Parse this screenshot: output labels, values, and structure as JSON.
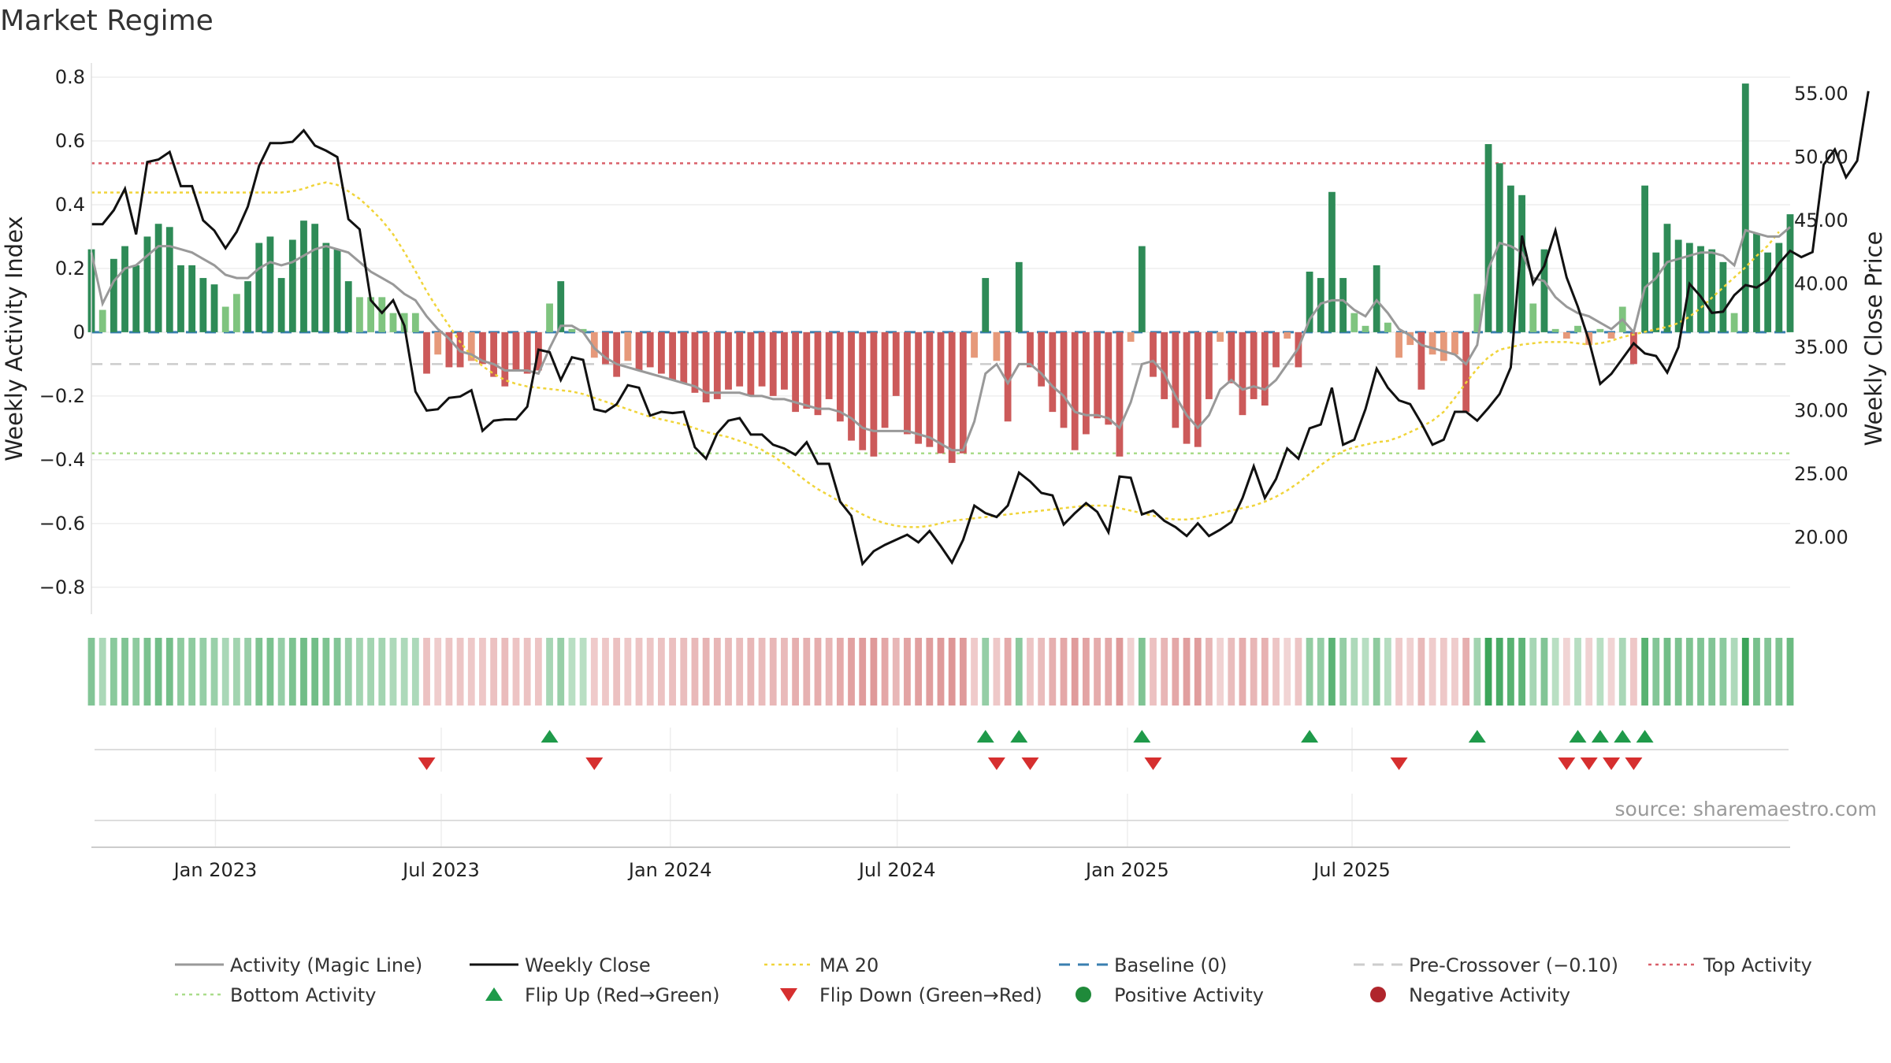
{
  "title": "Market Regime",
  "credit": "source: sharemaestro.com",
  "chart_data": {
    "type": "bar",
    "ylabel_left": "Weekly Activity Index",
    "ylabel_right": "Weekly Close Price",
    "y_left_ticks": [
      "0.8",
      "0.6",
      "0.4",
      "0.2",
      "0",
      "−0.2",
      "−0.4",
      "−0.6",
      "−0.8"
    ],
    "y_left_values": [
      0.8,
      0.6,
      0.4,
      0.2,
      0,
      -0.2,
      -0.4,
      -0.6,
      -0.8
    ],
    "y_right_ticks": [
      "55.00",
      "50.00",
      "45.00",
      "40.00",
      "35.00",
      "30.00",
      "25.00",
      "20.00"
    ],
    "y_right_values": [
      55,
      50,
      45,
      40,
      35,
      30,
      25,
      20
    ],
    "ylim_left": [
      -0.84,
      0.8
    ],
    "ylim_right": [
      15.05,
      56.3
    ],
    "x_ticks": [
      "Jan 2023",
      "Jul 2023",
      "Jan 2024",
      "Jul 2024",
      "Jan 2025",
      "Jul 2025"
    ],
    "x_tick_weeks": [
      11.1,
      31.3,
      51.8,
      72.1,
      92.7,
      112.8
    ],
    "grid": true,
    "reference_lines": {
      "baseline": 0,
      "pre_crossover": -0.1,
      "top_activity": 0.53,
      "bottom_activity": -0.38
    },
    "activity": [
      0.26,
      0.07,
      0.23,
      0.27,
      0.21,
      0.3,
      0.34,
      0.33,
      0.21,
      0.21,
      0.17,
      0.15,
      0.08,
      0.12,
      0.16,
      0.28,
      0.3,
      0.17,
      0.29,
      0.35,
      0.34,
      0.28,
      0.26,
      0.16,
      0.11,
      0.11,
      0.11,
      0.06,
      0.06,
      0.06,
      -0.13,
      -0.07,
      -0.11,
      -0.11,
      -0.09,
      -0.1,
      -0.14,
      -0.17,
      -0.12,
      -0.13,
      -0.12,
      0.09,
      0.16,
      0.01,
      0.01,
      -0.08,
      -0.1,
      -0.14,
      -0.09,
      -0.12,
      -0.11,
      -0.13,
      -0.15,
      -0.16,
      -0.19,
      -0.22,
      -0.21,
      -0.18,
      -0.17,
      -0.2,
      -0.17,
      -0.2,
      -0.18,
      -0.25,
      -0.24,
      -0.26,
      -0.21,
      -0.28,
      -0.34,
      -0.37,
      -0.39,
      -0.3,
      -0.2,
      -0.32,
      -0.35,
      -0.36,
      -0.38,
      -0.41,
      -0.38,
      -0.08,
      0.17,
      -0.09,
      -0.28,
      0.22,
      -0.11,
      -0.17,
      -0.25,
      -0.3,
      -0.37,
      -0.32,
      -0.27,
      -0.29,
      -0.39,
      -0.03,
      0.27,
      -0.14,
      -0.21,
      -0.3,
      -0.35,
      -0.36,
      -0.21,
      -0.03,
      -0.16,
      -0.26,
      -0.21,
      -0.23,
      -0.11,
      -0.02,
      -0.11,
      0.19,
      0.17,
      0.44,
      0.17,
      0.06,
      0.02,
      0.21,
      0.03,
      -0.08,
      -0.04,
      -0.18,
      -0.07,
      -0.09,
      -0.07,
      -0.25,
      0.12,
      0.59,
      0.53,
      0.46,
      0.43,
      0.09,
      0.26,
      0.01,
      -0.02,
      0.02,
      -0.04,
      0.01,
      -0.02,
      0.08,
      -0.1,
      0.46,
      0.25,
      0.34,
      0.29,
      0.28,
      0.27,
      0.26,
      0.22,
      0.06,
      0.78,
      0.31,
      0.25,
      0.28,
      0.37
    ],
    "activity_magic_line": [
      0.25,
      0.09,
      0.16,
      0.2,
      0.21,
      0.24,
      0.27,
      0.27,
      0.26,
      0.25,
      0.23,
      0.21,
      0.18,
      0.17,
      0.17,
      0.2,
      0.22,
      0.21,
      0.22,
      0.24,
      0.26,
      0.27,
      0.26,
      0.25,
      0.22,
      0.19,
      0.17,
      0.15,
      0.12,
      0.1,
      0.05,
      0.01,
      -0.02,
      -0.06,
      -0.07,
      -0.09,
      -0.1,
      -0.12,
      -0.12,
      -0.12,
      -0.13,
      -0.05,
      0.02,
      0.02,
      0.0,
      -0.05,
      -0.08,
      -0.1,
      -0.11,
      -0.12,
      -0.13,
      -0.14,
      -0.15,
      -0.16,
      -0.17,
      -0.19,
      -0.19,
      -0.19,
      -0.19,
      -0.2,
      -0.2,
      -0.21,
      -0.21,
      -0.22,
      -0.23,
      -0.24,
      -0.24,
      -0.25,
      -0.27,
      -0.3,
      -0.31,
      -0.31,
      -0.31,
      -0.31,
      -0.32,
      -0.33,
      -0.35,
      -0.37,
      -0.37,
      -0.28,
      -0.13,
      -0.1,
      -0.16,
      -0.1,
      -0.1,
      -0.13,
      -0.17,
      -0.2,
      -0.25,
      -0.26,
      -0.26,
      -0.27,
      -0.3,
      -0.22,
      -0.1,
      -0.09,
      -0.13,
      -0.2,
      -0.26,
      -0.3,
      -0.26,
      -0.18,
      -0.15,
      -0.18,
      -0.17,
      -0.18,
      -0.15,
      -0.1,
      -0.05,
      0.04,
      0.09,
      0.1,
      0.1,
      0.07,
      0.05,
      0.1,
      0.06,
      0.01,
      -0.01,
      -0.04,
      -0.05,
      -0.06,
      -0.07,
      -0.1,
      -0.04,
      0.2,
      0.28,
      0.27,
      0.25,
      0.17,
      0.16,
      0.11,
      0.08,
      0.06,
      0.05,
      0.03,
      0.01,
      0.04,
      0.0,
      0.14,
      0.17,
      0.22,
      0.23,
      0.24,
      0.25,
      0.25,
      0.24,
      0.21,
      0.32,
      0.31,
      0.3,
      0.3,
      0.33
    ],
    "weekly_close": [
      44.7,
      44.7,
      45.8,
      47.5,
      43.9,
      49.6,
      49.8,
      50.4,
      47.7,
      47.7,
      45.0,
      44.2,
      42.8,
      44.1,
      46.1,
      49.3,
      51.1,
      51.1,
      51.2,
      52.1,
      50.9,
      50.5,
      50.0,
      45.1,
      44.3,
      38.7,
      37.7,
      38.7,
      36.7,
      31.5,
      30.0,
      30.1,
      31.0,
      31.1,
      31.6,
      28.4,
      29.2,
      29.3,
      29.3,
      30.3,
      34.8,
      34.6,
      32.4,
      34.2,
      34.0,
      30.1,
      29.9,
      30.5,
      32.0,
      31.8,
      29.6,
      29.9,
      29.8,
      29.9,
      27.1,
      26.2,
      28.2,
      29.2,
      29.4,
      28.1,
      28.1,
      27.3,
      27.0,
      26.5,
      27.5,
      25.8,
      25.8,
      22.8,
      21.7,
      17.9,
      18.9,
      19.4,
      19.8,
      20.2,
      19.6,
      20.5,
      19.3,
      18.0,
      19.8,
      22.5,
      21.9,
      21.6,
      22.5,
      25.1,
      24.4,
      23.5,
      23.3,
      21.0,
      21.9,
      22.7,
      22.0,
      20.4,
      24.8,
      24.7,
      21.8,
      22.1,
      21.3,
      20.8,
      20.1,
      21.1,
      20.1,
      20.6,
      21.2,
      23.1,
      25.6,
      23.1,
      24.6,
      27.0,
      26.2,
      28.6,
      28.9,
      31.8,
      27.3,
      27.7,
      30.1,
      33.3,
      31.8,
      30.8,
      30.5,
      29.0,
      27.3,
      27.7,
      29.9,
      29.9,
      29.2,
      30.2,
      31.3,
      33.4,
      43.8,
      40.0,
      41.4,
      44.2,
      40.5,
      38.2,
      35.5,
      32.1,
      32.9,
      34.1,
      35.3,
      34.5,
      34.3,
      33.0,
      35.0,
      40.0,
      39.0,
      37.7,
      37.8,
      39.1,
      39.9,
      39.7,
      40.3,
      41.6,
      42.6,
      42.1,
      42.5,
      49.4,
      50.6,
      48.4,
      49.7,
      55.2
    ],
    "ma20": [
      47.2,
      47.2,
      47.2,
      47.2,
      47.2,
      47.2,
      47.2,
      47.2,
      47.2,
      47.2,
      47.2,
      47.2,
      47.2,
      47.2,
      47.2,
      47.2,
      47.2,
      47.2,
      47.3,
      47.5,
      47.8,
      48.0,
      47.8,
      47.3,
      46.7,
      45.9,
      45.0,
      43.9,
      42.5,
      41.0,
      39.4,
      38.0,
      36.7,
      35.4,
      34.3,
      33.5,
      32.9,
      32.4,
      32.1,
      31.9,
      31.8,
      31.7,
      31.6,
      31.5,
      31.3,
      31.0,
      30.7,
      30.4,
      30.1,
      29.8,
      29.5,
      29.3,
      29.1,
      28.9,
      28.6,
      28.3,
      28.1,
      27.9,
      27.6,
      27.3,
      26.9,
      26.4,
      25.8,
      25.1,
      24.4,
      23.8,
      23.3,
      22.8,
      22.3,
      21.8,
      21.4,
      21.1,
      20.9,
      20.8,
      20.8,
      20.9,
      21.1,
      21.3,
      21.4,
      21.5,
      21.6,
      21.7,
      21.8,
      21.9,
      22.0,
      22.1,
      22.2,
      22.3,
      22.4,
      22.5,
      22.5,
      22.5,
      22.3,
      22.1,
      21.9,
      21.7,
      21.5,
      21.4,
      21.4,
      21.5,
      21.7,
      21.9,
      22.1,
      22.3,
      22.5,
      22.8,
      23.2,
      23.7,
      24.3,
      25.0,
      25.7,
      26.3,
      26.8,
      27.1,
      27.3,
      27.5,
      27.6,
      27.9,
      28.3,
      28.7,
      29.2,
      29.9,
      31.0,
      32.2,
      33.3,
      34.2,
      34.8,
      35.0,
      35.2,
      35.3,
      35.4,
      35.4,
      35.4,
      35.3,
      35.2,
      35.3,
      35.5,
      35.8,
      36.0,
      36.2,
      36.4,
      36.6,
      36.9,
      37.4,
      38.1,
      38.9,
      39.7,
      40.5,
      41.3,
      42.2,
      43.0,
      44.1
    ]
  },
  "legend": [
    {
      "label": "Activity (Magic Line)",
      "symbol": "solid-line",
      "color": "#999999"
    },
    {
      "label": "Weekly Close",
      "symbol": "solid-line",
      "color": "#111111"
    },
    {
      "label": "MA 20",
      "symbol": "dotted-line",
      "color": "#f0d43a"
    },
    {
      "label": "Baseline (0)",
      "symbol": "dashed-line",
      "color": "#3a7fb0"
    },
    {
      "label": "Pre-Crossover (−0.10)",
      "symbol": "dashed-line",
      "color": "#cccccc"
    },
    {
      "label": "Top Activity",
      "symbol": "dotted-line",
      "color": "#d9606a"
    },
    {
      "label": "Bottom Activity",
      "symbol": "dotted-line",
      "color": "#a9dc8a"
    },
    {
      "label": "Flip Up (Red→Green)",
      "symbol": "triangle-up",
      "color": "#1f9a4a"
    },
    {
      "label": "Flip Down (Green→Red)",
      "symbol": "triangle-down",
      "color": "#d62f2f"
    },
    {
      "label": "Positive Activity",
      "symbol": "circle",
      "color": "#1f8a3a"
    },
    {
      "label": "Negative Activity",
      "symbol": "circle",
      "color": "#b0252c"
    }
  ],
  "colors": {
    "strong_green": "#2e8b57",
    "light_green": "#7fc47f",
    "strong_red": "#cc5a5a",
    "light_red": "#e6997a",
    "grid": "#eeeeee"
  }
}
